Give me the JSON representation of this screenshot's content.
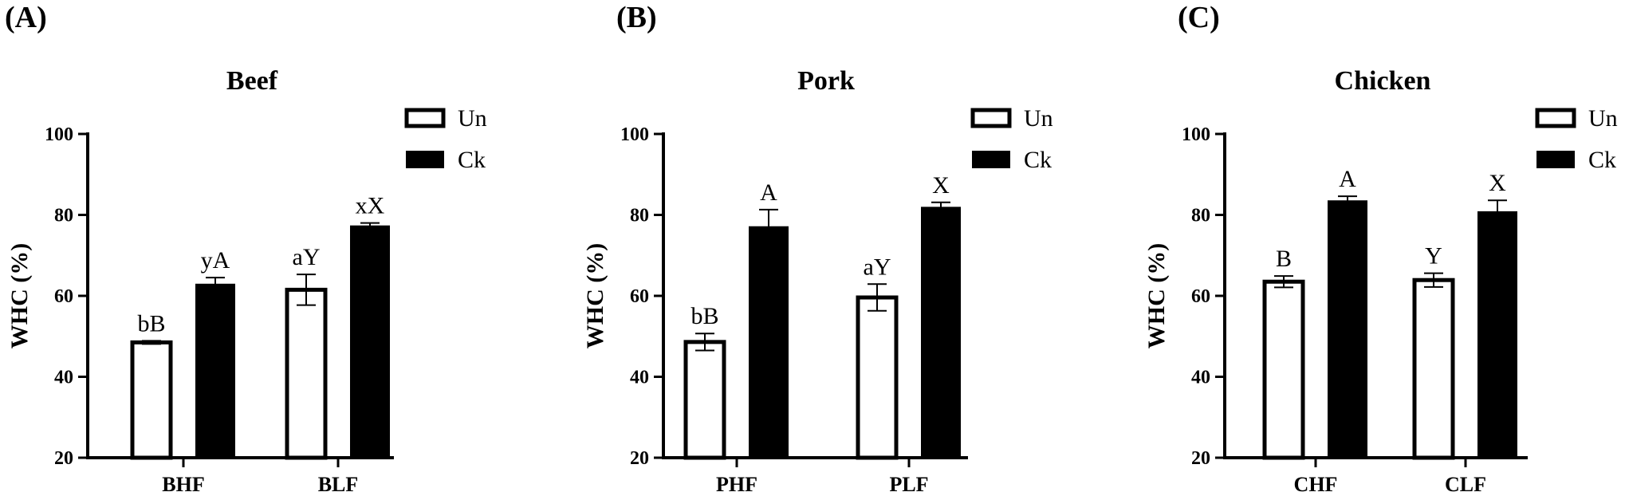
{
  "panels": [
    "(A)",
    "(B)",
    "(C)"
  ],
  "legend": [
    {
      "label": "Un",
      "color": "#ffffff"
    },
    {
      "label": "Ck",
      "color": "#000000"
    }
  ],
  "chart_data": [
    {
      "type": "bar",
      "title": "Beef",
      "ylabel": "WHC (%)",
      "xlabel": "",
      "ylim": [
        20,
        100
      ],
      "yticks": [
        20,
        40,
        60,
        80,
        100
      ],
      "categories": [
        "BHF",
        "BLF"
      ],
      "series": [
        {
          "name": "Un",
          "values": [
            48.5,
            61.5
          ],
          "errors": [
            0.4,
            3.8
          ],
          "labels": [
            "bB",
            "aY"
          ]
        },
        {
          "name": "Ck",
          "values": [
            62.8,
            77.2
          ],
          "errors": [
            1.7,
            0.8
          ],
          "labels": [
            "yA",
            "xX"
          ]
        }
      ],
      "legend_position": "top-right",
      "grid": false
    },
    {
      "type": "bar",
      "title": "Pork",
      "ylabel": "WHC (%)",
      "xlabel": "",
      "ylim": [
        20,
        100
      ],
      "yticks": [
        20,
        40,
        60,
        80,
        100
      ],
      "categories": [
        "PHF",
        "PLF"
      ],
      "series": [
        {
          "name": "Un",
          "values": [
            48.6,
            59.6
          ],
          "errors": [
            2.1,
            3.3
          ],
          "labels": [
            "bB",
            "aY"
          ]
        },
        {
          "name": "Ck",
          "values": [
            77.0,
            81.8
          ],
          "errors": [
            4.3,
            1.3
          ],
          "labels": [
            "A",
            "X"
          ]
        }
      ],
      "legend_position": "top-right",
      "grid": false
    },
    {
      "type": "bar",
      "title": "Chicken",
      "ylabel": "WHC (%)",
      "xlabel": "",
      "ylim": [
        20,
        100
      ],
      "yticks": [
        20,
        40,
        60,
        80,
        100
      ],
      "categories": [
        "CHF",
        "CLF"
      ],
      "series": [
        {
          "name": "Un",
          "values": [
            63.5,
            63.9
          ],
          "errors": [
            1.4,
            1.7
          ],
          "labels": [
            "B",
            "Y"
          ]
        },
        {
          "name": "Ck",
          "values": [
            83.4,
            80.7
          ],
          "errors": [
            1.2,
            2.9
          ],
          "labels": [
            "A",
            "X"
          ]
        }
      ],
      "legend_position": "top-right",
      "grid": false
    }
  ]
}
